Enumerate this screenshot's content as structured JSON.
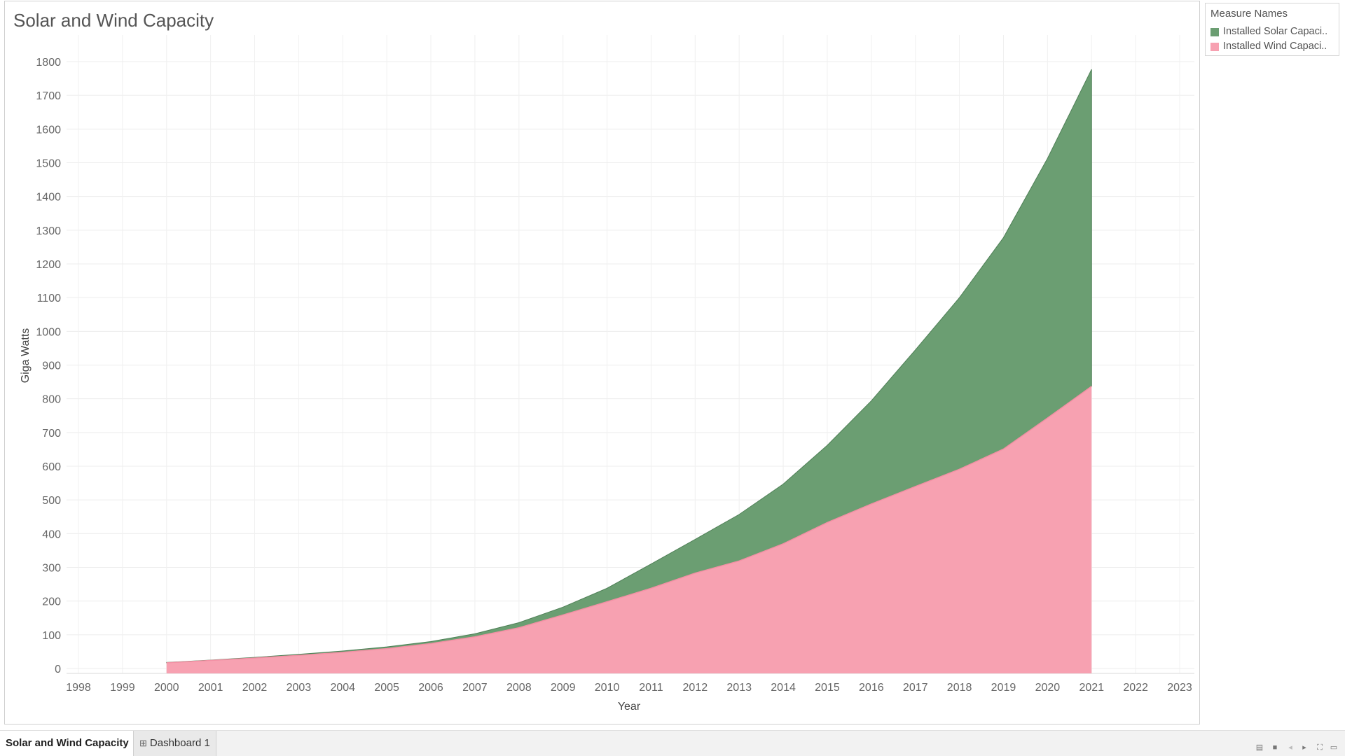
{
  "title": "Solar and Wind Capacity",
  "legend": {
    "title": "Measure Names",
    "items": [
      {
        "label": "Installed Solar Capaci..",
        "color": "#6b9e72"
      },
      {
        "label": "Installed Wind Capaci..",
        "color": "#f7a1b1"
      }
    ]
  },
  "chart_data": {
    "type": "area",
    "stacked": true,
    "title": "Solar and Wind Capacity",
    "xlabel": "Year",
    "ylabel": "Giga Watts",
    "xlim": [
      1998,
      2023
    ],
    "ylim": [
      0,
      1800
    ],
    "x_ticks": [
      1998,
      1999,
      2000,
      2001,
      2002,
      2003,
      2004,
      2005,
      2006,
      2007,
      2008,
      2009,
      2010,
      2011,
      2012,
      2013,
      2014,
      2015,
      2016,
      2017,
      2018,
      2019,
      2020,
      2021,
      2022,
      2023
    ],
    "y_ticks": [
      0,
      100,
      200,
      300,
      400,
      500,
      600,
      700,
      800,
      900,
      1000,
      1100,
      1200,
      1300,
      1400,
      1500,
      1600,
      1700,
      1800
    ],
    "grid": true,
    "legend_position": "right",
    "x": [
      2000,
      2001,
      2002,
      2003,
      2004,
      2005,
      2006,
      2007,
      2008,
      2009,
      2010,
      2011,
      2012,
      2013,
      2014,
      2015,
      2016,
      2017,
      2018,
      2019,
      2020,
      2021
    ],
    "series": [
      {
        "name": "Installed Wind Capaci..",
        "color": "#f7a1b1",
        "values": [
          17,
          24,
          31,
          39,
          48,
          59,
          74,
          94,
          121,
          159,
          198,
          238,
          283,
          319,
          370,
          433,
          488,
          540,
          591,
          651,
          743,
          837
        ]
      },
      {
        "name": "Installed Solar Capaci..",
        "color": "#6b9e72",
        "values": [
          1,
          1,
          2,
          3,
          4,
          5,
          6,
          9,
          15,
          23,
          40,
          72,
          100,
          138,
          177,
          229,
          306,
          405,
          509,
          627,
          770,
          940
        ]
      }
    ]
  },
  "tabs": [
    {
      "label": "Solar and Wind Capacity"
    },
    {
      "label": "Dashboard 1"
    }
  ]
}
